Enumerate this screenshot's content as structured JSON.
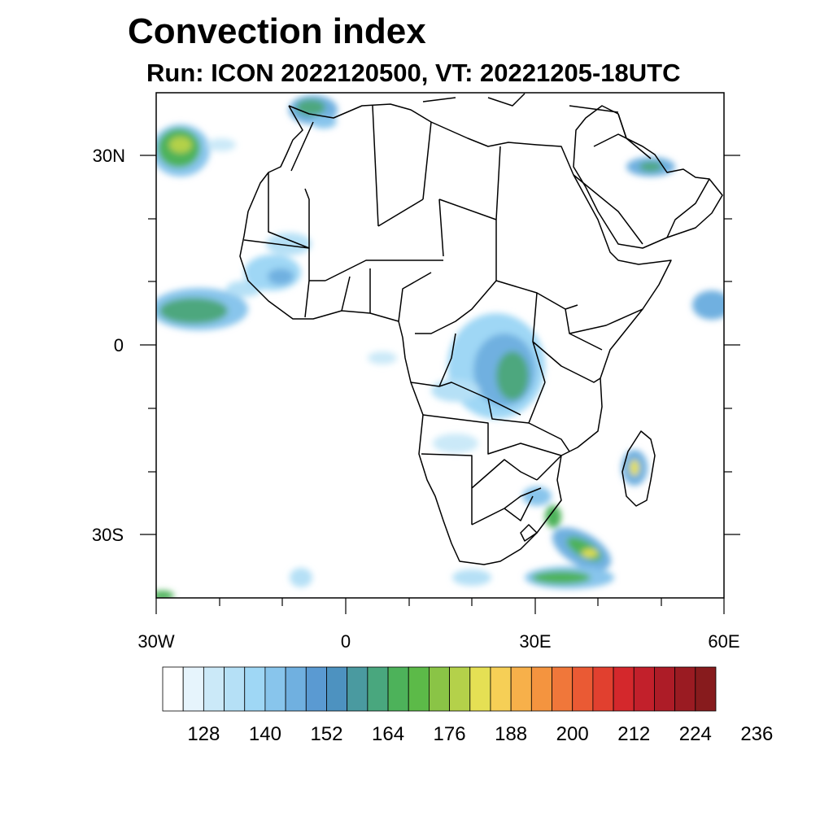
{
  "title": "Convection index",
  "subtitle": "Run: ICON 2022120500,  VT: 20221205-18UTC",
  "map": {
    "projection": "cylindrical equidistant",
    "lon_range": [
      -30,
      60
    ],
    "lat_range": [
      -40,
      40
    ],
    "lat_tick_labels": [
      {
        "lat": 30,
        "label": "30N"
      },
      {
        "lat": 0,
        "label": "0"
      },
      {
        "lat": -30,
        "label": "30S"
      }
    ],
    "lon_tick_labels": [
      {
        "lon": -30,
        "label": "30W"
      },
      {
        "lon": 0,
        "label": "0"
      },
      {
        "lon": 30,
        "label": "30E"
      },
      {
        "lon": 60,
        "label": "60E"
      }
    ],
    "features": "country boundaries and coastlines of Africa, Arabian Peninsula and Madagascar"
  },
  "colorbar": {
    "labels": [
      "128",
      "140",
      "152",
      "164",
      "176",
      "188",
      "200",
      "212",
      "224",
      "236"
    ],
    "colors": [
      "#ffffff",
      "#e6f4fc",
      "#cbe9f8",
      "#b5e0f6",
      "#9fd7f5",
      "#88c5ec",
      "#70b0e0",
      "#5a9ad2",
      "#4d92c0",
      "#4a9aa0",
      "#49a77e",
      "#4db25a",
      "#5cba48",
      "#8ac446",
      "#b4d14a",
      "#e5e054",
      "#f6cf56",
      "#f7b04a",
      "#f4943f",
      "#f0773a",
      "#ea5a34",
      "#e1402f",
      "#d4282c",
      "#c2202b",
      "#ad1c27",
      "#9a1b22",
      "#871b1d"
    ]
  },
  "convection_regions": [
    {
      "name": "NE Atlantic west of Morocco",
      "lon": -27,
      "lat": 30,
      "intensity": "high"
    },
    {
      "name": "Morocco coast",
      "lon": -4,
      "lat": 35,
      "intensity": "moderate"
    },
    {
      "name": "Tropical Atlantic",
      "lon": -25,
      "lat": 6,
      "intensity": "moderate"
    },
    {
      "name": "Guinea coast",
      "lon": -10,
      "lat": 10,
      "intensity": "moderate"
    },
    {
      "name": "Congo basin",
      "lon": 25,
      "lat": -3,
      "intensity": "moderate"
    },
    {
      "name": "Persian Gulf",
      "lon": 48,
      "lat": 28,
      "intensity": "moderate"
    },
    {
      "name": "Arabian Sea",
      "lon": 59,
      "lat": 7,
      "intensity": "moderate"
    },
    {
      "name": "Madagascar",
      "lon": 47,
      "lat": -19,
      "intensity": "moderate"
    },
    {
      "name": "Southeast African coast",
      "lon": 34,
      "lat": -31,
      "intensity": "high"
    },
    {
      "name": "South of South Africa",
      "lon": 37,
      "lat": -37,
      "intensity": "high"
    }
  ]
}
